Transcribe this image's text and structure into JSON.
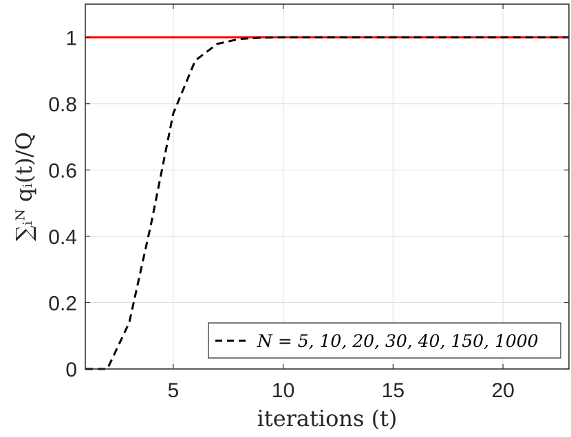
{
  "chart_data": {
    "type": "line",
    "xlabel": "iterations (t)",
    "ylabel": "∑ᵢᴺ qᵢ(t)/Q",
    "xlim": [
      1,
      23
    ],
    "ylim": [
      0,
      1.1
    ],
    "xticks": [
      5,
      10,
      15,
      20
    ],
    "yticks": [
      0,
      0.2,
      0.4,
      0.6,
      0.8,
      1
    ],
    "ytick_labels": [
      "0",
      "0.2",
      "0.4",
      "0.6",
      "0.8",
      "1"
    ],
    "grid": true,
    "legend_position": "bottom-right",
    "series": [
      {
        "name": "N = 5, 10, 20, 30, 40, 150, 1000",
        "style": "dashed",
        "color": "#000000",
        "x": [
          1,
          2,
          3,
          4,
          5,
          6,
          7,
          8,
          9,
          10,
          12,
          15,
          18,
          20,
          23
        ],
        "y": [
          0,
          0,
          0.14,
          0.44,
          0.77,
          0.93,
          0.98,
          0.995,
          0.999,
          1.0,
          1.0,
          1.0,
          1.0,
          1.0,
          1.0
        ]
      },
      {
        "name": "",
        "style": "solid",
        "color": "#ff0000",
        "x": [
          1,
          23
        ],
        "y": [
          1,
          1
        ]
      }
    ]
  }
}
